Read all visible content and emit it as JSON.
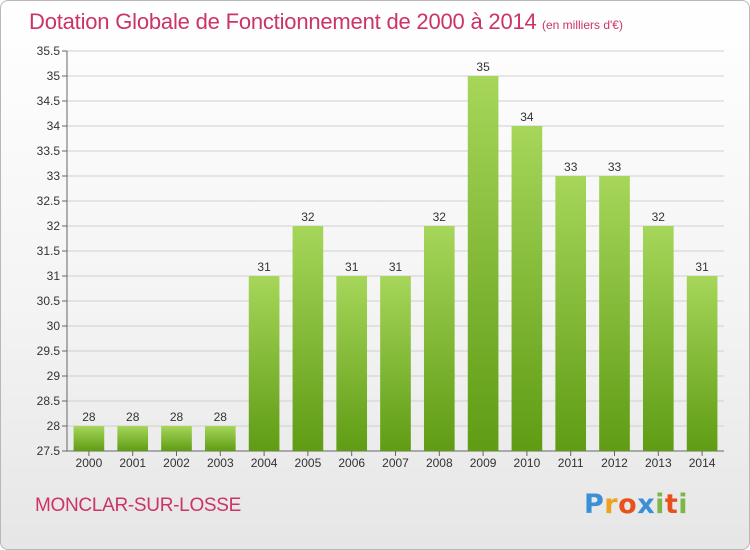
{
  "chart_data": {
    "type": "bar",
    "title": "Dotation Globale de Fonctionnement de 2000 à 2014",
    "subtitle": "(en milliers d'€)",
    "categories": [
      "2000",
      "2001",
      "2002",
      "2003",
      "2004",
      "2005",
      "2006",
      "2007",
      "2008",
      "2009",
      "2010",
      "2011",
      "2012",
      "2013",
      "2014"
    ],
    "values": [
      28,
      28,
      28,
      28,
      31,
      32,
      31,
      31,
      32,
      35,
      34,
      33,
      33,
      32,
      31
    ],
    "value_labels": [
      "28",
      "28",
      "28",
      "28",
      "31",
      "32",
      "31",
      "31",
      "32",
      "35",
      "34",
      "33",
      "33",
      "32",
      "31"
    ],
    "ylim": [
      27.5,
      35.5
    ],
    "yticks": [
      "27.5",
      "28",
      "28.5",
      "29",
      "29.5",
      "30",
      "30.5",
      "31",
      "31.5",
      "32",
      "32.5",
      "33",
      "33.5",
      "34",
      "34.5",
      "35",
      "35.5"
    ],
    "xlabel": "",
    "ylabel": "",
    "grid": true,
    "colors": {
      "bar_top": "#a6d65a",
      "bar_bottom": "#5f9c14",
      "title": "#cc3366",
      "grid": "#d0d0d0"
    }
  },
  "footer": {
    "commune": "MONCLAR-SUR-LOSSE"
  },
  "logo": {
    "letters": [
      "P",
      "r",
      "o",
      "x",
      "i",
      "t",
      "i"
    ],
    "colors": [
      "#3a8fd6",
      "#f0a020",
      "#e8501e",
      "#3a8fd6",
      "#7ab648",
      "#e8501e",
      "#7ab648"
    ]
  }
}
